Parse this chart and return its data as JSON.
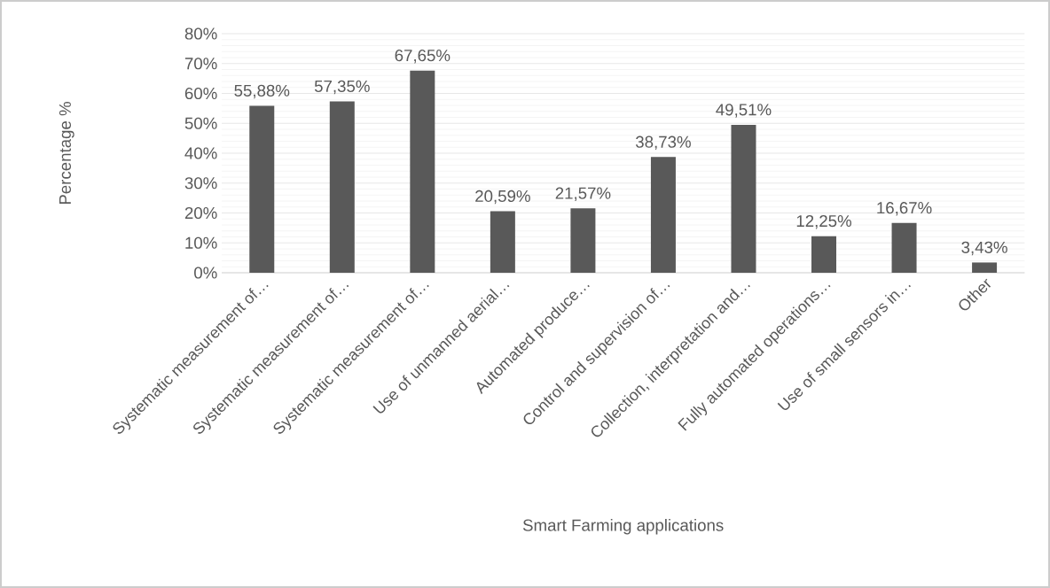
{
  "chart_data": {
    "type": "bar",
    "xlabel": "Smart Farming applications",
    "ylabel": "Percentage %",
    "categories": [
      "Systematic measurement of…",
      "Systematic measurement of…",
      "Systematic measurement of…",
      "Use of unmanned aerial…",
      "Automated produce…",
      "Control and supervision of…",
      "Collection, interpretation and…",
      "Fully automated operations…",
      "Use of small sensors in…",
      "Other"
    ],
    "values": [
      55.88,
      57.35,
      67.65,
      20.59,
      21.57,
      38.73,
      49.51,
      12.25,
      16.67,
      3.43
    ],
    "value_labels": [
      "55,88%",
      "57,35%",
      "67,65%",
      "20,59%",
      "21,57%",
      "38,73%",
      "49,51%",
      "12,25%",
      "16,67%",
      "3,43%"
    ],
    "color": "#595959",
    "ylim": [
      0,
      80
    ],
    "yticks": [
      {
        "value": 0,
        "label": "0%"
      },
      {
        "value": 10,
        "label": "10%"
      },
      {
        "value": 20,
        "label": "20%"
      },
      {
        "value": 30,
        "label": "30%"
      },
      {
        "value": 40,
        "label": "40%"
      },
      {
        "value": 50,
        "label": "50%"
      },
      {
        "value": 60,
        "label": "60%"
      },
      {
        "value": 70,
        "label": "70%"
      },
      {
        "value": 80,
        "label": "80%"
      }
    ],
    "grid": "y"
  }
}
